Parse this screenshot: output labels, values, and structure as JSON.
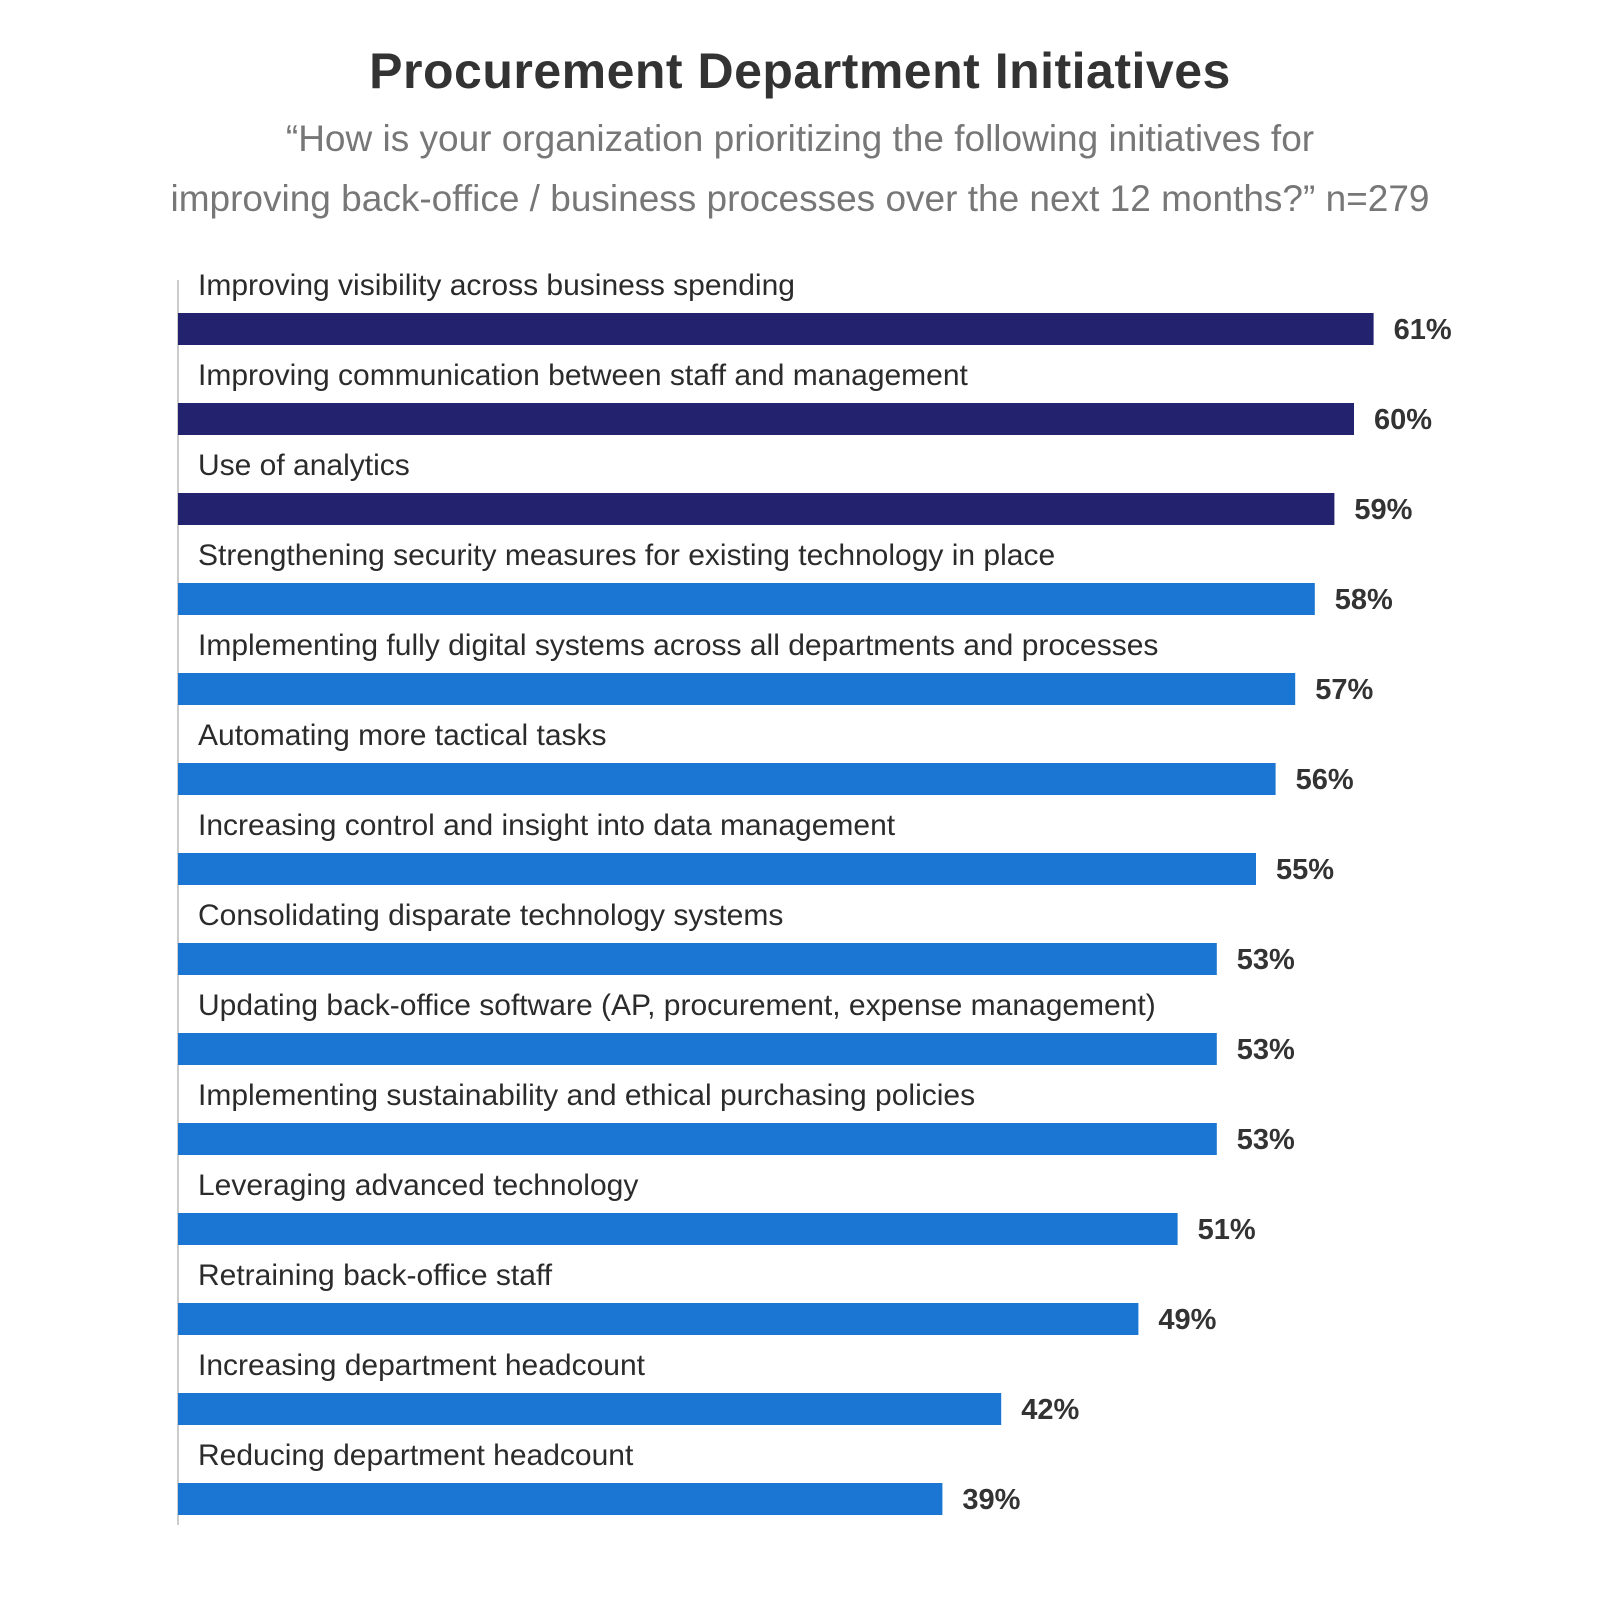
{
  "chart_data": {
    "type": "bar",
    "orientation": "horizontal",
    "title": "Procurement Department Initiatives",
    "subtitle_lines": [
      "“How is your organization prioritizing the following initiatives for",
      "improving back-office / business processes over the next 12 months?” n=279"
    ],
    "categories": [
      "Improving visibility across business spending",
      "Improving communication between staff and management",
      "Use of analytics",
      "Strengthening security measures for existing technology in place",
      "Implementing fully digital systems across all departments and processes",
      "Automating more tactical tasks",
      "Increasing control and insight into data management",
      "Consolidating disparate technology systems",
      "Updating back-office software (AP, procurement, expense management)",
      "Implementing sustainability and ethical purchasing policies",
      "Leveraging advanced technology",
      "Retraining back-office staff",
      "Increasing department headcount",
      "Reducing department headcount"
    ],
    "values": [
      61,
      60,
      59,
      58,
      57,
      56,
      55,
      53,
      53,
      53,
      51,
      49,
      42,
      39
    ],
    "value_labels": [
      "61%",
      "60%",
      "59%",
      "58%",
      "57%",
      "56%",
      "55%",
      "53%",
      "53%",
      "53%",
      "51%",
      "49%",
      "42%",
      "39%"
    ],
    "highlight_count": 3,
    "xlim": [
      0,
      100
    ],
    "unit": "%",
    "grid": false,
    "legend": "none"
  },
  "colors": {
    "highlight": "#22226e",
    "standard": "#1a76d2",
    "axis": "#bbbbbb",
    "label_text": "#2b2b2b",
    "value_text": "#333333"
  }
}
